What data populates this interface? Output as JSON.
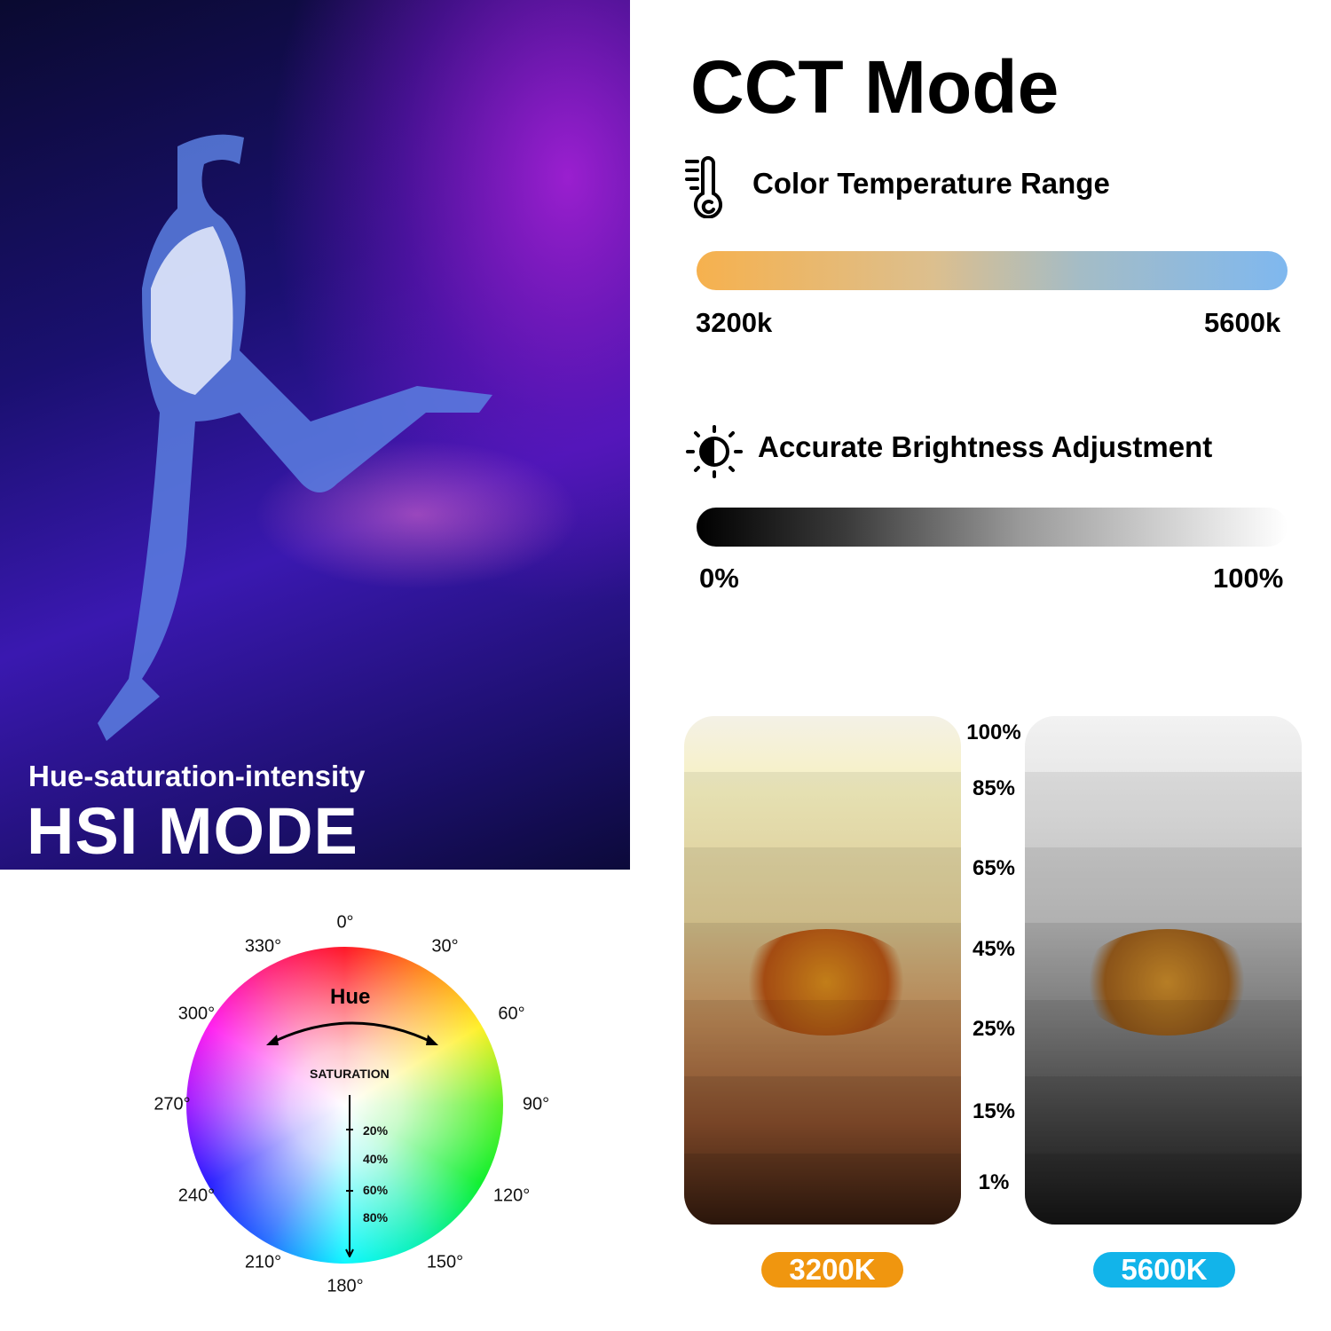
{
  "hsi": {
    "subtitle": "Hue-saturation-intensity",
    "title": "HSI MODE"
  },
  "cct": {
    "title": "CCT Mode",
    "color_temp": {
      "icon": "thermometer-icon",
      "label": "Color Temperature Range",
      "min": "3200k",
      "max": "5600k",
      "gradient": [
        "#f6b14e",
        "#7fb8ef"
      ]
    },
    "brightness": {
      "icon": "brightness-contrast-icon",
      "label": "Accurate Brightness Adjustment",
      "min": "0%",
      "max": "100%",
      "gradient": [
        "#000000",
        "#ffffff"
      ]
    }
  },
  "wheel": {
    "hue_label": "Hue",
    "saturation_label": "SATURATION",
    "degrees": [
      "0°",
      "30°",
      "60°",
      "90°",
      "120°",
      "150°",
      "180°",
      "210°",
      "240°",
      "270°",
      "300°",
      "330°"
    ],
    "saturation_ticks": [
      "20%",
      "40%",
      "60%",
      "80%"
    ]
  },
  "comparison": {
    "levels": [
      "100%",
      "85%",
      "65%",
      "45%",
      "25%",
      "15%",
      "1%"
    ],
    "warm_badge": "3200K",
    "cool_badge": "5600K",
    "warm_color": "#f0960f",
    "cool_color": "#12b4ea"
  }
}
